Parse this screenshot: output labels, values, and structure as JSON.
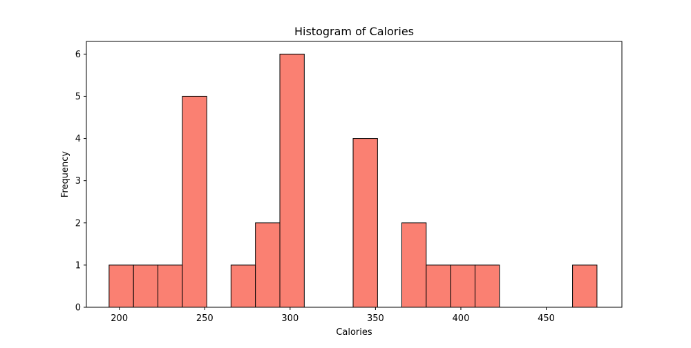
{
  "chart_data": {
    "type": "bar",
    "title": "Histogram of Calories",
    "xlabel": "Calories",
    "ylabel": "Frequency",
    "xlim": [
      180.7,
      494.3
    ],
    "ylim": [
      0,
      6.3
    ],
    "xticks": [
      200,
      250,
      300,
      350,
      400,
      450
    ],
    "yticks": [
      0,
      1,
      2,
      3,
      4,
      5,
      6
    ],
    "bar_color": "#fa8072",
    "edge_color": "#000000",
    "grid": false,
    "bins": [
      {
        "start": 194.0,
        "end": 208.3,
        "count": 1
      },
      {
        "start": 208.3,
        "end": 222.6,
        "count": 1
      },
      {
        "start": 222.6,
        "end": 236.9,
        "count": 1
      },
      {
        "start": 236.9,
        "end": 251.2,
        "count": 5
      },
      {
        "start": 251.2,
        "end": 265.4,
        "count": 0
      },
      {
        "start": 265.4,
        "end": 279.7,
        "count": 1
      },
      {
        "start": 279.7,
        "end": 294.0,
        "count": 2
      },
      {
        "start": 294.0,
        "end": 308.3,
        "count": 6
      },
      {
        "start": 308.3,
        "end": 322.6,
        "count": 0
      },
      {
        "start": 322.6,
        "end": 336.9,
        "count": 0
      },
      {
        "start": 336.9,
        "end": 351.2,
        "count": 4
      },
      {
        "start": 351.2,
        "end": 365.4,
        "count": 0
      },
      {
        "start": 365.4,
        "end": 379.7,
        "count": 2
      },
      {
        "start": 379.7,
        "end": 394.0,
        "count": 1
      },
      {
        "start": 394.0,
        "end": 408.3,
        "count": 1
      },
      {
        "start": 408.3,
        "end": 422.6,
        "count": 1
      },
      {
        "start": 422.6,
        "end": 436.9,
        "count": 0
      },
      {
        "start": 436.9,
        "end": 451.2,
        "count": 0
      },
      {
        "start": 451.2,
        "end": 465.4,
        "count": 0
      },
      {
        "start": 465.4,
        "end": 479.7,
        "count": 1
      }
    ]
  }
}
